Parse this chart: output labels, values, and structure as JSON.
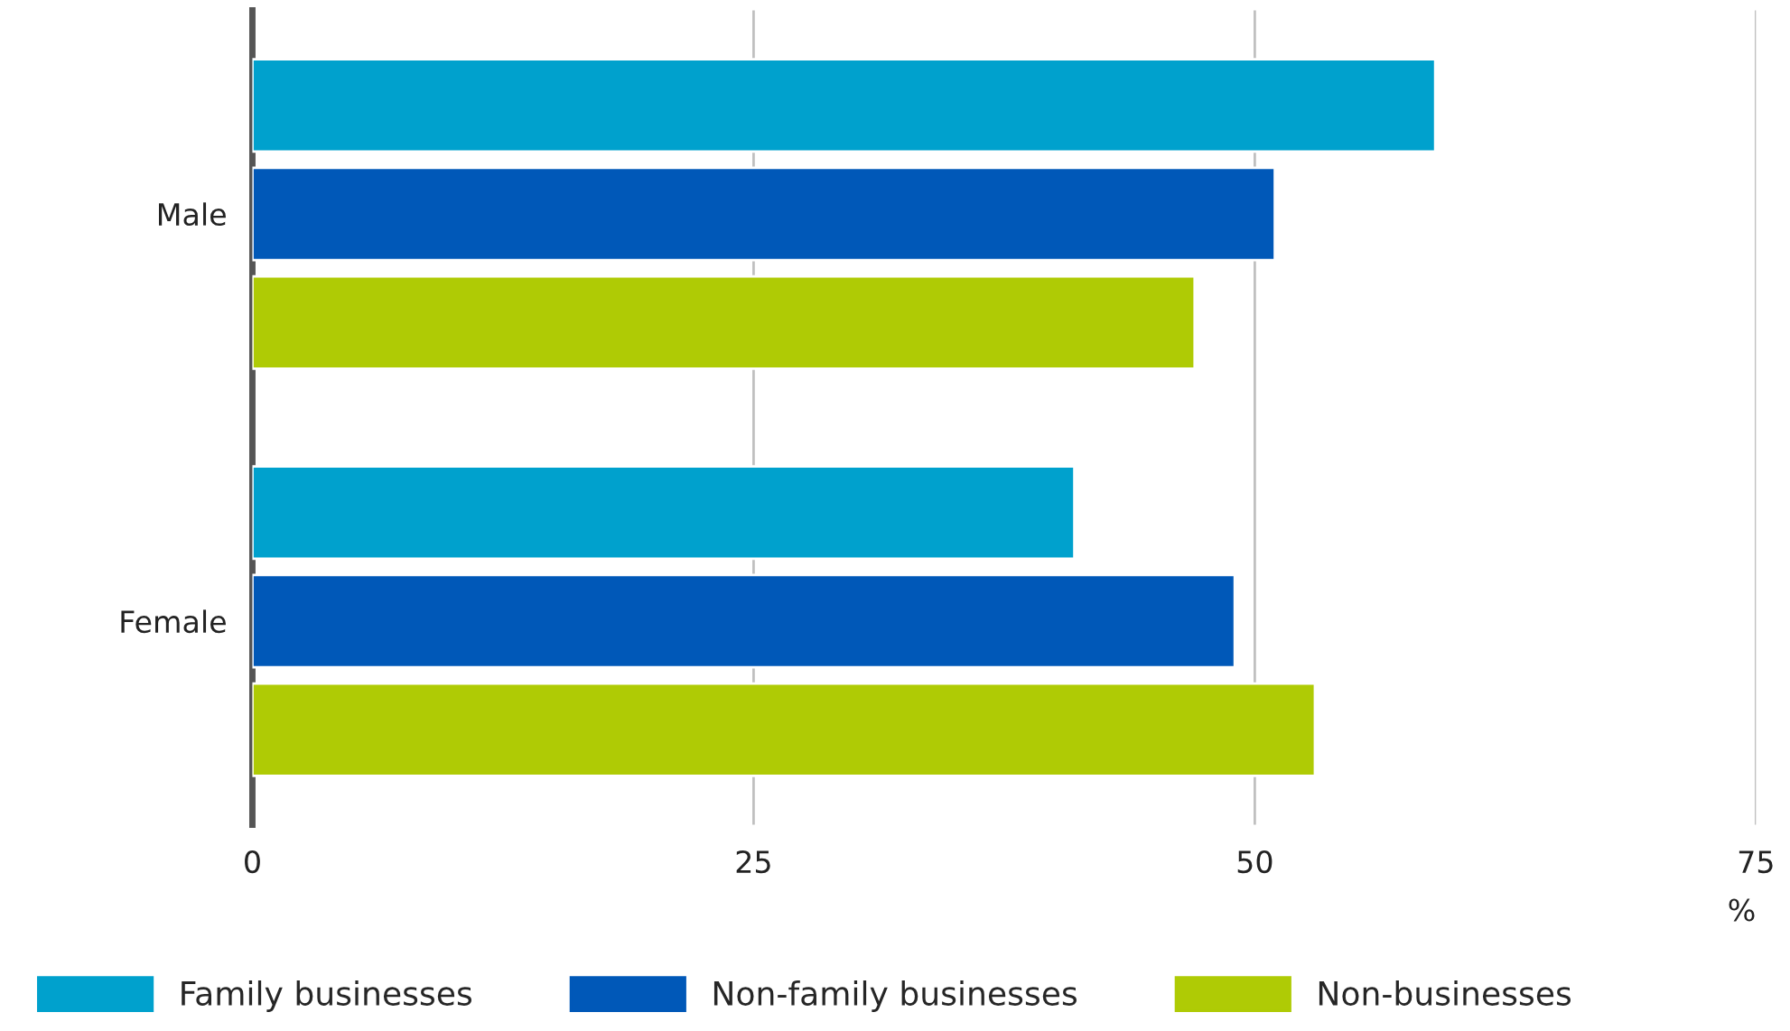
{
  "chart_data": {
    "type": "bar",
    "orientation": "horizontal",
    "categories": [
      "Male",
      "Female"
    ],
    "series": [
      {
        "name": "Family businesses",
        "color": "#00a1cd",
        "values": [
          59,
          41
        ]
      },
      {
        "name": "Non-family businesses",
        "color": "#0058b8",
        "values": [
          51,
          49
        ]
      },
      {
        "name": "Non-businesses",
        "color": "#afcb05",
        "values": [
          47,
          53
        ]
      }
    ],
    "xlabel": "%",
    "xlim": [
      0,
      75
    ],
    "xticks": [
      0,
      25,
      50,
      75
    ],
    "grid": "x",
    "legend": "bottom"
  }
}
